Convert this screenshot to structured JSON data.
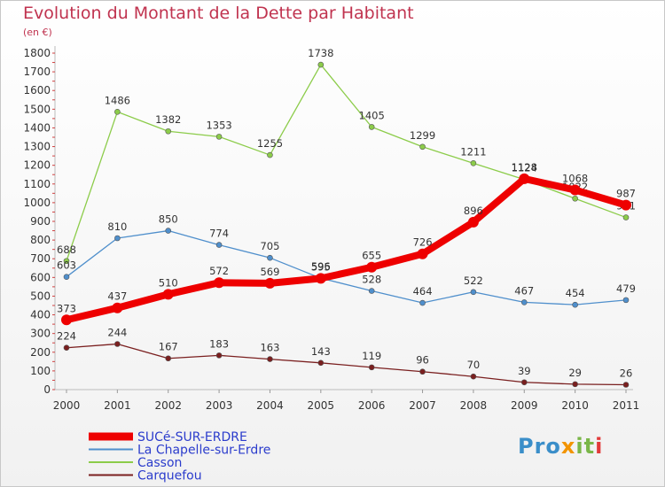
{
  "title": "Evolution du Montant de la Dette par Habitant",
  "subtitle": "(en €)",
  "logo": {
    "p1": "Pro",
    "p2": "x",
    "p3": "it",
    "p4": "i"
  },
  "chart_data": {
    "type": "line",
    "x": [
      "2000",
      "2001",
      "2002",
      "2003",
      "2004",
      "2005",
      "2006",
      "2007",
      "2008",
      "2009",
      "2010",
      "2011"
    ],
    "ylim": [
      0,
      1800
    ],
    "yticks": [
      0,
      100,
      200,
      300,
      400,
      500,
      600,
      700,
      800,
      900,
      1000,
      1100,
      1200,
      1300,
      1400,
      1500,
      1600,
      1700,
      1800
    ],
    "grid": false,
    "legend_position": "bottom-left",
    "series": [
      {
        "name": "Carquefou",
        "color": "#7a1f1f",
        "values": [
          224,
          244,
          167,
          183,
          163,
          143,
          119,
          96,
          70,
          39,
          29,
          26
        ]
      },
      {
        "name": "Casson",
        "color": "#8ccc4a",
        "values": [
          688,
          1486,
          1382,
          1353,
          1255,
          1738,
          1405,
          1299,
          1211,
          1124,
          1022,
          921
        ]
      },
      {
        "name": "La Chapelle-sur-Erdre",
        "color": "#4f8fcc",
        "values": [
          603,
          810,
          850,
          774,
          705,
          596,
          528,
          464,
          522,
          467,
          454,
          479
        ]
      },
      {
        "name": "SUCé-SUR-ERDRE",
        "color": "#ee0000",
        "values": [
          373,
          437,
          510,
          572,
          569,
          595,
          655,
          726,
          896,
          1128,
          1068,
          987
        ]
      }
    ],
    "legend_order": [
      "SUCé-SUR-ERDRE",
      "La Chapelle-sur-Erdre",
      "Casson",
      "Carquefou"
    ]
  }
}
